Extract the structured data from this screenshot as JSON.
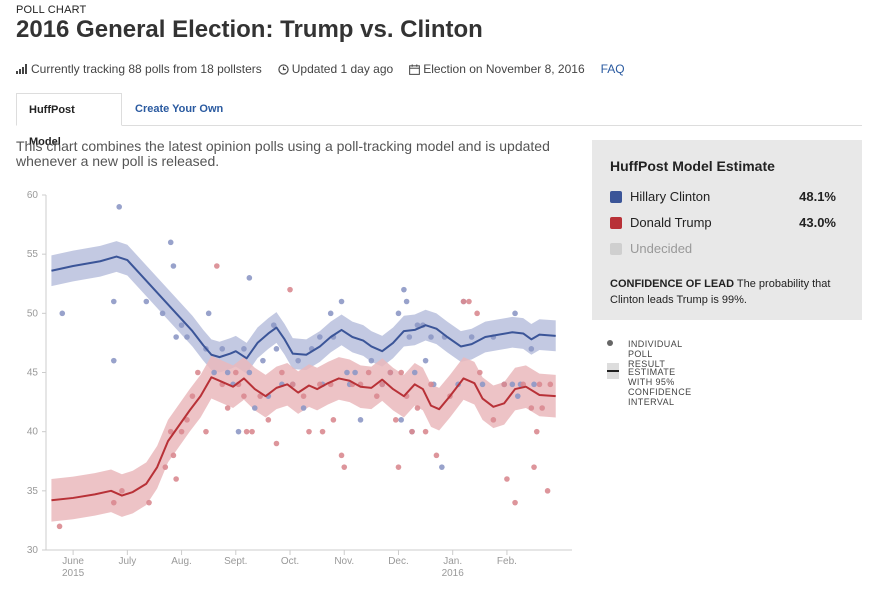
{
  "header": {
    "kicker": "POLL CHART",
    "title": "2016 General Election: Trump vs. Clinton",
    "tracking": "Currently tracking 88 polls from 18 pollsters",
    "updated": "Updated 1 day ago",
    "election": "Election on November 8, 2016",
    "faq": "FAQ"
  },
  "tabs": [
    {
      "label": "HuffPost Model"
    },
    {
      "label": "Create Your Own"
    }
  ],
  "description": "This chart combines the latest opinion polls using a poll-tracking model and is updated whenever a new poll is released.",
  "panel": {
    "title": "HuffPost Model Estimate",
    "rows": [
      {
        "label": "Hillary Clinton",
        "value": "48.1%",
        "color": "#3b5598"
      },
      {
        "label": "Donald Trump",
        "value": "43.0%",
        "color": "#b83137"
      },
      {
        "label": "Undecided",
        "value": "",
        "color": "#cfcfcf"
      }
    ],
    "confidence_label": "CONFIDENCE OF LEAD",
    "confidence_text": "The probability that Clinton leads Trump is 99%."
  },
  "legend": {
    "poll": "INDIVIDUAL POLL RESULT",
    "estimate": "ESTIMATE WITH 95% CONFIDENCE INTERVAL"
  },
  "colors": {
    "clinton": "#3b5598",
    "trump": "#b83137",
    "clinton_band": "#b9c0dd",
    "trump_band": "#eab8bc",
    "clinton_dot": "#8d98c5",
    "trump_dot": "#d98a90"
  },
  "chart_data": {
    "type": "line",
    "x_unit": "month index (0 = June 1, 2015)",
    "xlim": [
      -0.5,
      9.2
    ],
    "ylim": [
      30,
      60
    ],
    "yticks": [
      30,
      35,
      40,
      45,
      50,
      55,
      60
    ],
    "xticks": [
      {
        "x": 0,
        "label": "June",
        "sub": "2015"
      },
      {
        "x": 1,
        "label": "July",
        "sub": ""
      },
      {
        "x": 2,
        "label": "Aug.",
        "sub": ""
      },
      {
        "x": 3,
        "label": "Sept.",
        "sub": ""
      },
      {
        "x": 4,
        "label": "Oct.",
        "sub": ""
      },
      {
        "x": 5,
        "label": "Nov.",
        "sub": ""
      },
      {
        "x": 6,
        "label": "Dec.",
        "sub": ""
      },
      {
        "x": 7,
        "label": "Jan.",
        "sub": "2016"
      },
      {
        "x": 8,
        "label": "Feb.",
        "sub": ""
      }
    ],
    "grid": false,
    "series": [
      {
        "name": "Hillary Clinton",
        "estimate": [
          [
            -0.4,
            53.6
          ],
          [
            0,
            54
          ],
          [
            0.5,
            54.4
          ],
          [
            0.8,
            54.8
          ],
          [
            1.0,
            54.5
          ],
          [
            1.3,
            53
          ],
          [
            1.6,
            51.5
          ],
          [
            1.9,
            50
          ],
          [
            2.2,
            48.5
          ],
          [
            2.4,
            47.3
          ],
          [
            2.55,
            46.5
          ],
          [
            2.7,
            46.3
          ],
          [
            2.9,
            46.6
          ],
          [
            3.0,
            46.8
          ],
          [
            3.2,
            46.2
          ],
          [
            3.4,
            47.5
          ],
          [
            3.6,
            48.3
          ],
          [
            3.75,
            48.8
          ],
          [
            3.9,
            47.8
          ],
          [
            4.05,
            46.6
          ],
          [
            4.3,
            46.5
          ],
          [
            4.55,
            47.2
          ],
          [
            4.75,
            48
          ],
          [
            4.95,
            48.6
          ],
          [
            5.15,
            48
          ],
          [
            5.35,
            47.7
          ],
          [
            5.5,
            47.2
          ],
          [
            5.7,
            46.8
          ],
          [
            5.9,
            47.5
          ],
          [
            6.1,
            48.5
          ],
          [
            6.3,
            48.6
          ],
          [
            6.5,
            49.0
          ],
          [
            6.7,
            48.7
          ],
          [
            6.9,
            48
          ],
          [
            7.15,
            47.2
          ],
          [
            7.35,
            47.4
          ],
          [
            7.6,
            48
          ],
          [
            7.85,
            48.2
          ],
          [
            8.1,
            48.4
          ],
          [
            8.3,
            48.3
          ],
          [
            8.45,
            47.8
          ],
          [
            8.6,
            48.2
          ],
          [
            8.9,
            48.1
          ]
        ],
        "band": 1.3,
        "polls": [
          [
            -0.2,
            50
          ],
          [
            0.75,
            46
          ],
          [
            0.75,
            51
          ],
          [
            0.85,
            59
          ],
          [
            1.35,
            51
          ],
          [
            1.65,
            50
          ],
          [
            1.8,
            56
          ],
          [
            1.85,
            54
          ],
          [
            1.9,
            48
          ],
          [
            2.0,
            49
          ],
          [
            2.1,
            48
          ],
          [
            2.45,
            47
          ],
          [
            2.5,
            50
          ],
          [
            2.6,
            45
          ],
          [
            2.75,
            47
          ],
          [
            2.85,
            45
          ],
          [
            2.95,
            44
          ],
          [
            3.05,
            40
          ],
          [
            3.15,
            47
          ],
          [
            3.25,
            53
          ],
          [
            3.25,
            45
          ],
          [
            3.35,
            42
          ],
          [
            3.5,
            46
          ],
          [
            3.6,
            43
          ],
          [
            3.7,
            49
          ],
          [
            3.75,
            47
          ],
          [
            3.85,
            44
          ],
          [
            4.05,
            44
          ],
          [
            4.15,
            46
          ],
          [
            4.25,
            42
          ],
          [
            4.4,
            47
          ],
          [
            4.55,
            48
          ],
          [
            4.6,
            44
          ],
          [
            4.75,
            50
          ],
          [
            4.8,
            48
          ],
          [
            4.95,
            51
          ],
          [
            5.05,
            45
          ],
          [
            5.1,
            44
          ],
          [
            5.2,
            45
          ],
          [
            5.3,
            41
          ],
          [
            5.5,
            46
          ],
          [
            5.7,
            44
          ],
          [
            5.85,
            45
          ],
          [
            6.0,
            50
          ],
          [
            6.05,
            41
          ],
          [
            6.1,
            52
          ],
          [
            6.15,
            51
          ],
          [
            6.2,
            48
          ],
          [
            6.25,
            40
          ],
          [
            6.3,
            45
          ],
          [
            6.35,
            49
          ],
          [
            6.45,
            49
          ],
          [
            6.5,
            46
          ],
          [
            6.6,
            48
          ],
          [
            6.65,
            44
          ],
          [
            6.8,
            37
          ],
          [
            6.85,
            48
          ],
          [
            7.1,
            44
          ],
          [
            7.2,
            51
          ],
          [
            7.35,
            48
          ],
          [
            7.55,
            44
          ],
          [
            7.75,
            48
          ],
          [
            7.95,
            44
          ],
          [
            8.1,
            44
          ],
          [
            8.15,
            50
          ],
          [
            8.2,
            43
          ],
          [
            8.25,
            44
          ],
          [
            8.5,
            44
          ],
          [
            8.45,
            47
          ]
        ]
      },
      {
        "name": "Donald Trump",
        "estimate": [
          [
            -0.4,
            34.2
          ],
          [
            0,
            34.4
          ],
          [
            0.4,
            34.7
          ],
          [
            0.7,
            35
          ],
          [
            0.9,
            34.6
          ],
          [
            1.1,
            34.9
          ],
          [
            1.35,
            35.6
          ],
          [
            1.55,
            37
          ],
          [
            1.75,
            39.2
          ],
          [
            1.95,
            40.5
          ],
          [
            2.15,
            41.8
          ],
          [
            2.35,
            43
          ],
          [
            2.55,
            44.6
          ],
          [
            2.75,
            44.2
          ],
          [
            2.95,
            43.8
          ],
          [
            3.15,
            44.5
          ],
          [
            3.35,
            43.6
          ],
          [
            3.55,
            43
          ],
          [
            3.75,
            43.7
          ],
          [
            3.95,
            44
          ],
          [
            4.15,
            43.3
          ],
          [
            4.35,
            43.9
          ],
          [
            4.5,
            43.6
          ],
          [
            4.7,
            44.1
          ],
          [
            4.9,
            44.5
          ],
          [
            5.1,
            44.3
          ],
          [
            5.3,
            43.8
          ],
          [
            5.5,
            43.7
          ],
          [
            5.7,
            44.4
          ],
          [
            5.9,
            43.6
          ],
          [
            6.1,
            43
          ],
          [
            6.3,
            44
          ],
          [
            6.45,
            43.6
          ],
          [
            6.6,
            42.2
          ],
          [
            6.75,
            41.9
          ],
          [
            6.95,
            43
          ],
          [
            7.2,
            44.5
          ],
          [
            7.4,
            44.1
          ],
          [
            7.55,
            42.8
          ],
          [
            7.75,
            42.1
          ],
          [
            7.95,
            42.4
          ],
          [
            8.15,
            43.6
          ],
          [
            8.35,
            43.8
          ],
          [
            8.6,
            43.1
          ],
          [
            8.9,
            43.0
          ]
        ],
        "band": 1.8,
        "polls": [
          [
            -0.25,
            32
          ],
          [
            0.75,
            34
          ],
          [
            0.9,
            35
          ],
          [
            1.4,
            34
          ],
          [
            1.7,
            37
          ],
          [
            1.8,
            40
          ],
          [
            1.85,
            38
          ],
          [
            1.9,
            36
          ],
          [
            2.0,
            40
          ],
          [
            2.1,
            41
          ],
          [
            2.2,
            43
          ],
          [
            2.3,
            45
          ],
          [
            2.45,
            40
          ],
          [
            2.65,
            54
          ],
          [
            2.75,
            44
          ],
          [
            2.85,
            42
          ],
          [
            3.0,
            45
          ],
          [
            3.05,
            44
          ],
          [
            3.15,
            43
          ],
          [
            3.2,
            40
          ],
          [
            3.3,
            40
          ],
          [
            3.45,
            43
          ],
          [
            3.6,
            41
          ],
          [
            3.75,
            39
          ],
          [
            3.85,
            45
          ],
          [
            4.0,
            52
          ],
          [
            4.05,
            44
          ],
          [
            4.25,
            43
          ],
          [
            4.35,
            40
          ],
          [
            4.55,
            44
          ],
          [
            4.6,
            40
          ],
          [
            4.75,
            44
          ],
          [
            4.8,
            41
          ],
          [
            4.95,
            38
          ],
          [
            5.0,
            37
          ],
          [
            5.15,
            44
          ],
          [
            5.3,
            44
          ],
          [
            5.45,
            45
          ],
          [
            5.6,
            43
          ],
          [
            5.7,
            44
          ],
          [
            5.85,
            45
          ],
          [
            5.95,
            41
          ],
          [
            6.0,
            37
          ],
          [
            6.05,
            45
          ],
          [
            6.15,
            43
          ],
          [
            6.25,
            40
          ],
          [
            6.35,
            42
          ],
          [
            6.5,
            40
          ],
          [
            6.6,
            44
          ],
          [
            6.7,
            38
          ],
          [
            6.95,
            43
          ],
          [
            7.2,
            51
          ],
          [
            7.3,
            51
          ],
          [
            7.45,
            50
          ],
          [
            7.5,
            45
          ],
          [
            7.75,
            41
          ],
          [
            7.95,
            44
          ],
          [
            8.0,
            36
          ],
          [
            8.15,
            34
          ],
          [
            8.3,
            44
          ],
          [
            8.45,
            42
          ],
          [
            8.5,
            37
          ],
          [
            8.55,
            40
          ],
          [
            8.6,
            44
          ],
          [
            8.65,
            42
          ],
          [
            8.75,
            35
          ],
          [
            8.8,
            44
          ]
        ]
      }
    ]
  }
}
